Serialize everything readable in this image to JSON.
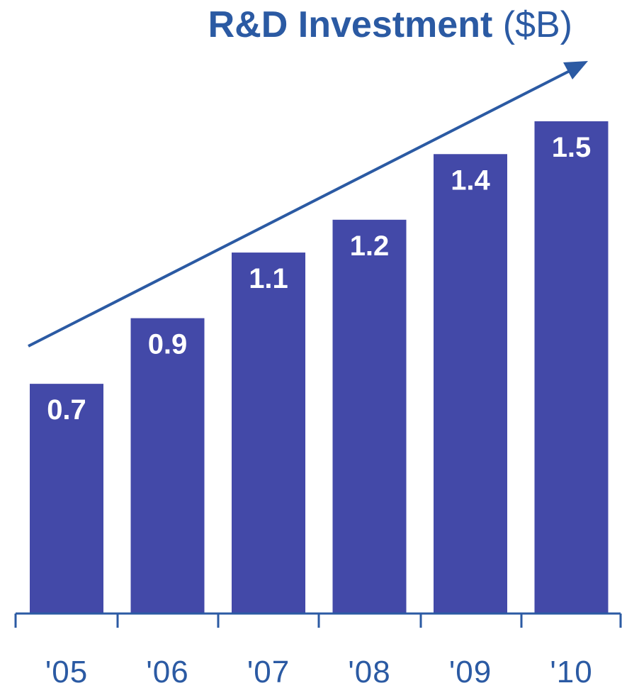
{
  "title": {
    "main": "R&D Investment",
    "unit": "($B)"
  },
  "colors": {
    "bar": "#4349a8",
    "axis": "#2b5aa3",
    "arrow": "#2b5aa3",
    "title": "#2b5aa3",
    "bar_label": "#ffffff"
  },
  "chart_data": {
    "type": "bar",
    "title": "R&D Investment ($B)",
    "xlabel": "",
    "ylabel": "",
    "categories": [
      "'05",
      "'06",
      "'07",
      "'08",
      "'09",
      "'10"
    ],
    "values": [
      0.7,
      0.9,
      1.1,
      1.2,
      1.4,
      1.5
    ],
    "data_labels": [
      "0.7",
      "0.9",
      "1.1",
      "1.2",
      "1.4",
      "1.5"
    ],
    "ylim": [
      0,
      1.5
    ],
    "grid": false,
    "legend": "none",
    "annotation": "upward trend arrow"
  }
}
